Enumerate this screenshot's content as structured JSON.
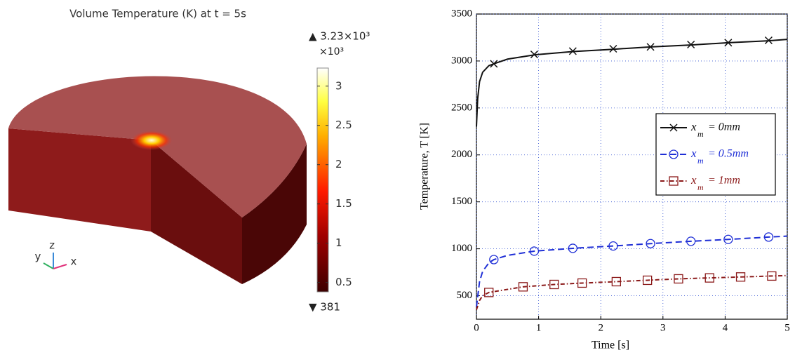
{
  "chart_data": [
    {
      "type": "colorbar",
      "title": "Volume Temperature (K) at t = 5s",
      "max_label": "▲ 3.23×10³",
      "multiplier": "×10³",
      "min_label": "▼ 381",
      "ylim": [
        0.381,
        3.23
      ],
      "yticks": [
        0.5,
        1,
        1.5,
        2,
        2.5,
        3
      ],
      "axes_labels": {
        "x": "x",
        "y": "y",
        "z": "z"
      }
    },
    {
      "type": "line",
      "xlabel": "Time [s]",
      "ylabel": "Temperature, T [K]",
      "xlim": [
        0,
        5
      ],
      "xticks": [
        0,
        1,
        2,
        3,
        4,
        5
      ],
      "ylim": [
        250,
        3500
      ],
      "yticks": [
        500,
        1000,
        1500,
        2000,
        2500,
        3000,
        3500
      ],
      "grid": true,
      "legend": "upper right",
      "series": [
        {
          "name": "x",
          "name_subscript": "m",
          "name_rest": "= 0mm",
          "color": "#111111",
          "dash": "solid",
          "marker": "x",
          "x": [
            0,
            0.02,
            0.05,
            0.1,
            0.2,
            0.28,
            0.5,
            0.93,
            1.55,
            2.2,
            2.8,
            3.45,
            4.05,
            4.7,
            5
          ],
          "values": [
            2300,
            2600,
            2780,
            2880,
            2950,
            2970,
            3020,
            3065,
            3100,
            3125,
            3150,
            3170,
            3195,
            3215,
            3230
          ],
          "marker_x": [
            0.28,
            0.93,
            1.55,
            2.2,
            2.8,
            3.45,
            4.05,
            4.7
          ],
          "marker_values": [
            2970,
            3070,
            3105,
            3130,
            3150,
            3175,
            3195,
            3220
          ]
        },
        {
          "name": "x",
          "name_subscript": "m",
          "name_rest": "= 0.5mm",
          "color": "#1f2fd6",
          "dash": "dashed",
          "marker": "o",
          "x": [
            0,
            0.05,
            0.1,
            0.2,
            0.28,
            0.5,
            0.93,
            1.55,
            2.2,
            2.8,
            3.45,
            4.05,
            4.7,
            5
          ],
          "values": [
            380,
            650,
            760,
            850,
            885,
            930,
            975,
            1005,
            1030,
            1055,
            1080,
            1100,
            1125,
            1135
          ],
          "marker_x": [
            0.28,
            0.93,
            1.55,
            2.2,
            2.8,
            3.45,
            4.05,
            4.7
          ],
          "marker_values": [
            885,
            975,
            1005,
            1030,
            1055,
            1080,
            1100,
            1125
          ]
        },
        {
          "name": "x",
          "name_subscript": "m",
          "name_rest": "= 1mm",
          "color": "#8b1a1a",
          "dash": "dashdot",
          "marker": "s",
          "x": [
            0,
            0.05,
            0.1,
            0.2,
            0.75,
            1.25,
            1.7,
            2.25,
            2.75,
            3.25,
            3.75,
            4.25,
            4.75,
            5
          ],
          "values": [
            350,
            450,
            500,
            535,
            595,
            620,
            635,
            650,
            665,
            680,
            690,
            700,
            710,
            715
          ],
          "marker_x": [
            0.2,
            0.75,
            1.25,
            1.7,
            2.25,
            2.75,
            3.25,
            3.75,
            4.25,
            4.75
          ],
          "marker_values": [
            535,
            595,
            620,
            635,
            650,
            665,
            680,
            690,
            700,
            710
          ]
        }
      ]
    }
  ]
}
